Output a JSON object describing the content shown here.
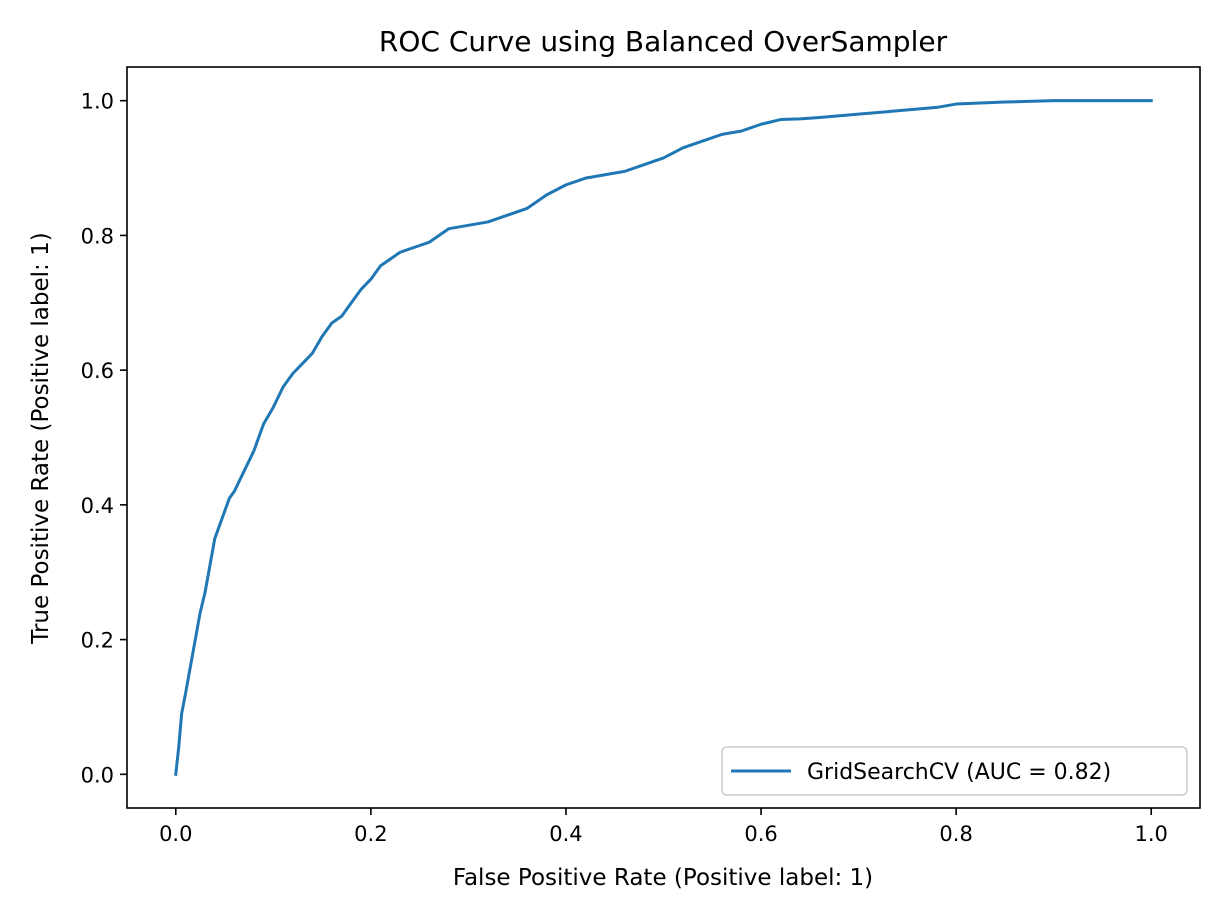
{
  "chart_data": {
    "type": "line",
    "title": "ROC Curve using Balanced OverSampler",
    "xlabel": "False Positive Rate (Positive label: 1)",
    "ylabel": "True Positive Rate (Positive label: 1)",
    "xlim": [
      -0.05,
      1.05
    ],
    "ylim": [
      -0.05,
      1.05
    ],
    "xticks": [
      0.0,
      0.2,
      0.4,
      0.6,
      0.8,
      1.0
    ],
    "xtick_labels": [
      "0.0",
      "0.2",
      "0.4",
      "0.6",
      "0.8",
      "1.0"
    ],
    "yticks": [
      0.0,
      0.2,
      0.4,
      0.6,
      0.8,
      1.0
    ],
    "ytick_labels": [
      "0.0",
      "0.2",
      "0.4",
      "0.6",
      "0.8",
      "1.0"
    ],
    "grid": false,
    "legend_position": "lower-right",
    "series": [
      {
        "name": "GridSearchCV (AUC = 0.82)",
        "color": "#1f77b4",
        "x": [
          0.0,
          0.003,
          0.006,
          0.01,
          0.015,
          0.02,
          0.025,
          0.03,
          0.035,
          0.04,
          0.045,
          0.05,
          0.055,
          0.06,
          0.07,
          0.08,
          0.09,
          0.1,
          0.11,
          0.12,
          0.13,
          0.14,
          0.15,
          0.16,
          0.17,
          0.18,
          0.19,
          0.2,
          0.21,
          0.22,
          0.23,
          0.24,
          0.25,
          0.26,
          0.27,
          0.28,
          0.3,
          0.32,
          0.34,
          0.36,
          0.38,
          0.4,
          0.42,
          0.44,
          0.46,
          0.48,
          0.5,
          0.52,
          0.54,
          0.56,
          0.58,
          0.6,
          0.62,
          0.64,
          0.66,
          0.7,
          0.74,
          0.78,
          0.8,
          0.85,
          0.9,
          0.95,
          1.0
        ],
        "y": [
          0.0,
          0.04,
          0.09,
          0.12,
          0.16,
          0.2,
          0.24,
          0.27,
          0.31,
          0.35,
          0.37,
          0.39,
          0.41,
          0.42,
          0.45,
          0.48,
          0.52,
          0.545,
          0.575,
          0.595,
          0.61,
          0.625,
          0.65,
          0.67,
          0.68,
          0.7,
          0.72,
          0.735,
          0.755,
          0.765,
          0.775,
          0.78,
          0.785,
          0.79,
          0.8,
          0.81,
          0.815,
          0.82,
          0.83,
          0.84,
          0.86,
          0.875,
          0.885,
          0.89,
          0.895,
          0.905,
          0.915,
          0.93,
          0.94,
          0.95,
          0.955,
          0.965,
          0.972,
          0.973,
          0.975,
          0.98,
          0.985,
          0.99,
          0.995,
          0.998,
          1.0,
          1.0,
          1.0
        ]
      }
    ]
  }
}
